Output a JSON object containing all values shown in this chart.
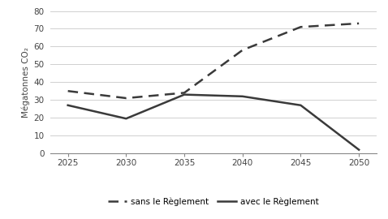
{
  "x": [
    2025,
    2030,
    2035,
    2040,
    2045,
    2050
  ],
  "sans_reglement": [
    35,
    31,
    34,
    58,
    71,
    73
  ],
  "avec_reglement": [
    27,
    19.5,
    33,
    32,
    27,
    2
  ],
  "ylabel": "Mégatonnes CO₂",
  "legend_dashed": "sans le Règlement",
  "legend_solid": "avec le Règlement",
  "ylim": [
    0,
    80
  ],
  "yticks": [
    0,
    10,
    20,
    30,
    40,
    50,
    60,
    70,
    80
  ],
  "xticks": [
    2025,
    2030,
    2035,
    2040,
    2045,
    2050
  ],
  "line_color": "#3a3a3a",
  "background_color": "#ffffff",
  "grid_color": "#d0d0d0"
}
